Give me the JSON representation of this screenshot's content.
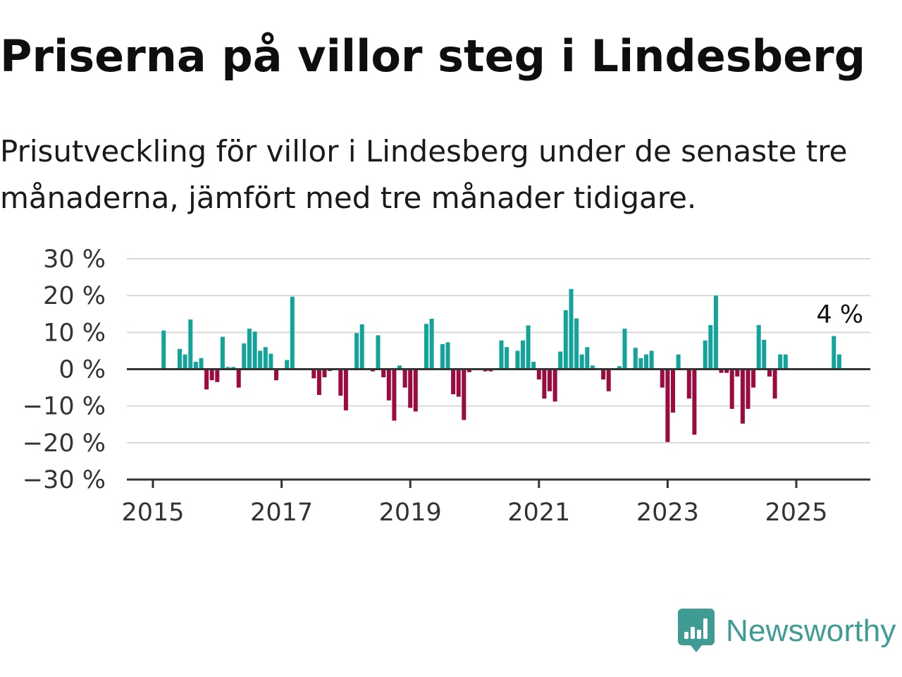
{
  "title": "Priserna på villor steg i Lindesberg",
  "subtitle": "Prisutveckling för villor i Lindesberg under de senaste tre månaderna, jämfört med tre månader tidigare.",
  "brand": {
    "name": "Newsworthy",
    "icon": "newsworthy-logo-icon",
    "color": "#3f9c94"
  },
  "colors": {
    "positive": "#12a39a",
    "negative": "#9c0a3f",
    "grid": "#d9d9d9",
    "axis": "#333333"
  },
  "chart_data": {
    "type": "bar",
    "x_unit": "month",
    "ylim": [
      -30,
      30
    ],
    "yticks": [
      30,
      20,
      10,
      0,
      -10,
      -20,
      -30
    ],
    "ytick_labels": [
      "30 %",
      "20 %",
      "10 %",
      "0 %",
      "−10 %",
      "−20 %",
      "−30 %"
    ],
    "xticks": [
      2015,
      2017,
      2019,
      2021,
      2023,
      2025
    ],
    "xtick_labels": [
      "2015",
      "2017",
      "2019",
      "2021",
      "2023",
      "2025"
    ],
    "grid": true,
    "annotation": {
      "text": "4 %",
      "x": "2025-09",
      "value": 4
    },
    "points": [
      {
        "x": "2015-03",
        "v": 10.5
      },
      {
        "x": "2015-06",
        "v": 5.5
      },
      {
        "x": "2015-07",
        "v": 4
      },
      {
        "x": "2015-08",
        "v": 13.5
      },
      {
        "x": "2015-09",
        "v": 2
      },
      {
        "x": "2015-10",
        "v": 3
      },
      {
        "x": "2015-11",
        "v": -5.5
      },
      {
        "x": "2015-12",
        "v": -3
      },
      {
        "x": "2016-01",
        "v": -3.5
      },
      {
        "x": "2016-02",
        "v": 8.8
      },
      {
        "x": "2016-03",
        "v": 0.6
      },
      {
        "x": "2016-04",
        "v": 0.6
      },
      {
        "x": "2016-05",
        "v": -5
      },
      {
        "x": "2016-06",
        "v": 7
      },
      {
        "x": "2016-07",
        "v": 11
      },
      {
        "x": "2016-08",
        "v": 10.2
      },
      {
        "x": "2016-09",
        "v": 5
      },
      {
        "x": "2016-10",
        "v": 6
      },
      {
        "x": "2016-11",
        "v": 4.2
      },
      {
        "x": "2016-12",
        "v": -3
      },
      {
        "x": "2017-02",
        "v": 2.5
      },
      {
        "x": "2017-03",
        "v": 19.7
      },
      {
        "x": "2017-07",
        "v": -2.5
      },
      {
        "x": "2017-08",
        "v": -7
      },
      {
        "x": "2017-09",
        "v": -2.2
      },
      {
        "x": "2017-10",
        "v": -0.5
      },
      {
        "x": "2017-12",
        "v": -7.2
      },
      {
        "x": "2018-01",
        "v": -11.2
      },
      {
        "x": "2018-03",
        "v": 9.8
      },
      {
        "x": "2018-04",
        "v": 12.2
      },
      {
        "x": "2018-06",
        "v": -0.6
      },
      {
        "x": "2018-07",
        "v": 9.2
      },
      {
        "x": "2018-08",
        "v": -2.2
      },
      {
        "x": "2018-09",
        "v": -8.5
      },
      {
        "x": "2018-10",
        "v": -14
      },
      {
        "x": "2018-11",
        "v": 1
      },
      {
        "x": "2018-12",
        "v": -5
      },
      {
        "x": "2019-01",
        "v": -10.5
      },
      {
        "x": "2019-02",
        "v": -11.5
      },
      {
        "x": "2019-04",
        "v": 12.3
      },
      {
        "x": "2019-05",
        "v": 13.7
      },
      {
        "x": "2019-07",
        "v": 6.8
      },
      {
        "x": "2019-08",
        "v": 7.3
      },
      {
        "x": "2019-09",
        "v": -6.8
      },
      {
        "x": "2019-10",
        "v": -7.5
      },
      {
        "x": "2019-11",
        "v": -13.8
      },
      {
        "x": "2019-12",
        "v": -0.8
      },
      {
        "x": "2020-03",
        "v": -0.6
      },
      {
        "x": "2020-04",
        "v": -0.6
      },
      {
        "x": "2020-06",
        "v": 7.8
      },
      {
        "x": "2020-07",
        "v": 6
      },
      {
        "x": "2020-09",
        "v": 5
      },
      {
        "x": "2020-10",
        "v": 7.8
      },
      {
        "x": "2020-11",
        "v": 11.9
      },
      {
        "x": "2020-12",
        "v": 2
      },
      {
        "x": "2021-01",
        "v": -2.8
      },
      {
        "x": "2021-02",
        "v": -8
      },
      {
        "x": "2021-03",
        "v": -6
      },
      {
        "x": "2021-04",
        "v": -8.8
      },
      {
        "x": "2021-05",
        "v": 4.8
      },
      {
        "x": "2021-06",
        "v": 16
      },
      {
        "x": "2021-07",
        "v": 21.8
      },
      {
        "x": "2021-08",
        "v": 13.8
      },
      {
        "x": "2021-09",
        "v": 4
      },
      {
        "x": "2021-10",
        "v": 6
      },
      {
        "x": "2021-11",
        "v": 1
      },
      {
        "x": "2022-01",
        "v": -2.8
      },
      {
        "x": "2022-02",
        "v": -6
      },
      {
        "x": "2022-04",
        "v": 0.8
      },
      {
        "x": "2022-05",
        "v": 11
      },
      {
        "x": "2022-07",
        "v": 5.8
      },
      {
        "x": "2022-08",
        "v": 3
      },
      {
        "x": "2022-09",
        "v": 4
      },
      {
        "x": "2022-10",
        "v": 5
      },
      {
        "x": "2022-12",
        "v": -5
      },
      {
        "x": "2023-01",
        "v": -19.8
      },
      {
        "x": "2023-02",
        "v": -11.8
      },
      {
        "x": "2023-03",
        "v": 4
      },
      {
        "x": "2023-05",
        "v": -8
      },
      {
        "x": "2023-06",
        "v": -17.8
      },
      {
        "x": "2023-08",
        "v": 7.8
      },
      {
        "x": "2023-09",
        "v": 12
      },
      {
        "x": "2023-10",
        "v": 20
      },
      {
        "x": "2023-11",
        "v": -1
      },
      {
        "x": "2023-12",
        "v": -1
      },
      {
        "x": "2024-01",
        "v": -10.8
      },
      {
        "x": "2024-02",
        "v": -2
      },
      {
        "x": "2024-03",
        "v": -14.8
      },
      {
        "x": "2024-04",
        "v": -10.8
      },
      {
        "x": "2024-05",
        "v": -5
      },
      {
        "x": "2024-06",
        "v": 12
      },
      {
        "x": "2024-07",
        "v": 8
      },
      {
        "x": "2024-08",
        "v": -2
      },
      {
        "x": "2024-09",
        "v": -8
      },
      {
        "x": "2024-10",
        "v": 4
      },
      {
        "x": "2024-11",
        "v": 4
      },
      {
        "x": "2025-08",
        "v": 9
      },
      {
        "x": "2025-09",
        "v": 4
      }
    ]
  }
}
